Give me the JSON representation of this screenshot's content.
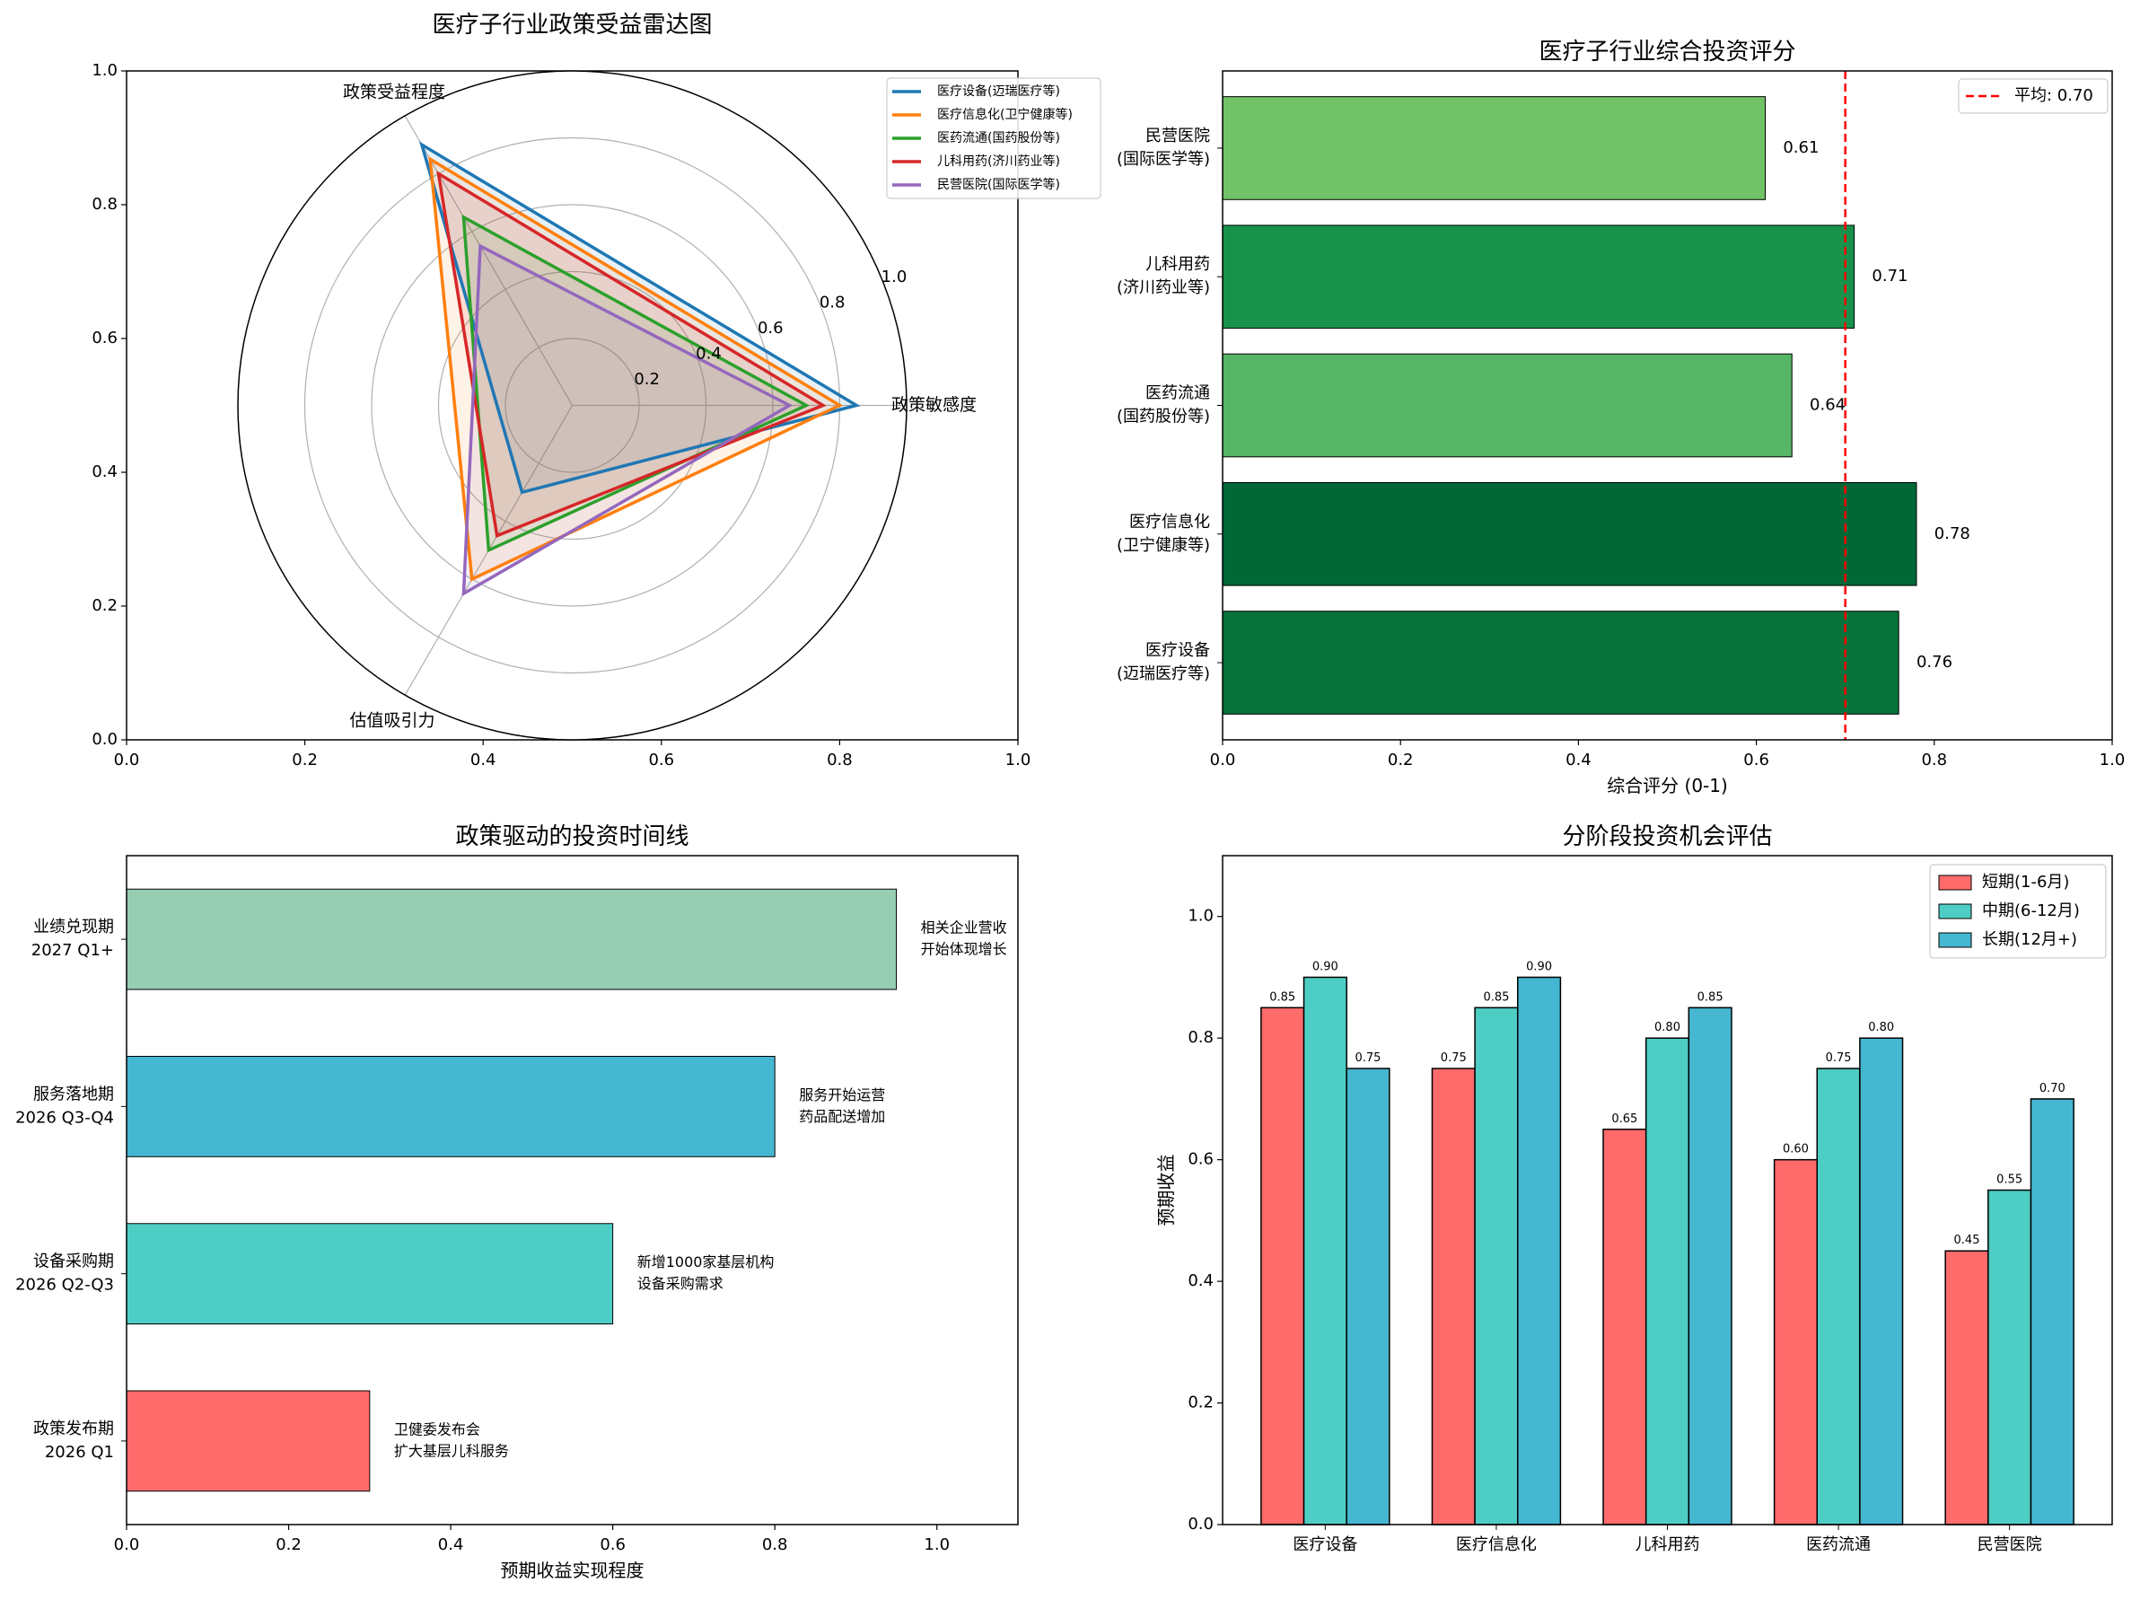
{
  "chart_data": [
    {
      "type": "radar",
      "title": "医疗子行业政策受益雷达图",
      "axes": [
        "政策敏感度",
        "政策受益程度",
        "估值吸引力"
      ],
      "rlim": [
        0,
        1.0
      ],
      "r_ticks": [
        "0.2",
        "0.4",
        "0.6",
        "0.8",
        "1.0"
      ],
      "background_axis_ticks": [
        "0.0",
        "0.2",
        "0.4",
        "0.6",
        "0.8",
        "1.0"
      ],
      "legend_position": "top-right",
      "series": [
        {
          "name": "医疗设备(迈瑞医疗等)",
          "color": "#1f77b4",
          "values": [
            0.85,
            0.9,
            0.3
          ]
        },
        {
          "name": "医疗信息化(卫宁健康等)",
          "color": "#ff7f0e",
          "values": [
            0.8,
            0.85,
            0.6
          ]
        },
        {
          "name": "医药流通(国药股份等)",
          "color": "#2ca02c",
          "values": [
            0.7,
            0.65,
            0.5
          ]
        },
        {
          "name": "儿科用药(济川药业等)",
          "color": "#d62728",
          "values": [
            0.75,
            0.8,
            0.45
          ]
        },
        {
          "name": "民营医院(国际医学等)",
          "color": "#9467bd",
          "values": [
            0.65,
            0.55,
            0.65
          ]
        }
      ]
    },
    {
      "type": "bar",
      "orientation": "horizontal",
      "title": "医疗子行业综合投资评分",
      "xlabel": "综合评分 (0-1)",
      "xlim": [
        0,
        1.0
      ],
      "x_ticks": [
        "0.0",
        "0.2",
        "0.4",
        "0.6",
        "0.8",
        "1.0"
      ],
      "categories": [
        [
          "医疗设备",
          "(迈瑞医疗等)"
        ],
        [
          "医疗信息化",
          "(卫宁健康等)"
        ],
        [
          "医药流通",
          "(国药股份等)"
        ],
        [
          "儿科用药",
          "(济川药业等)"
        ],
        [
          "民营医院",
          "(国际医学等)"
        ]
      ],
      "values": [
        0.76,
        0.78,
        0.64,
        0.71,
        0.61
      ],
      "value_labels": [
        "0.76",
        "0.78",
        "0.64",
        "0.71",
        "0.61"
      ],
      "colors": [
        "#08723b",
        "#006837",
        "#57b567",
        "#17924b",
        "#72c267"
      ],
      "reference_line": {
        "value": 0.7,
        "label": "平均: 0.70",
        "color": "#ff0000"
      },
      "legend_position": "top-right"
    },
    {
      "type": "bar",
      "orientation": "horizontal",
      "title": "政策驱动的投资时间线",
      "xlabel": "预期收益实现程度",
      "xlim": [
        0,
        1.1
      ],
      "x_ticks": [
        "0.0",
        "0.2",
        "0.4",
        "0.6",
        "0.8",
        "1.0"
      ],
      "categories": [
        [
          "政策发布期",
          "2026 Q1"
        ],
        [
          "设备采购期",
          "2026 Q2-Q3"
        ],
        [
          "服务落地期",
          "2026 Q3-Q4"
        ],
        [
          "业绩兑现期",
          "2027 Q1+"
        ]
      ],
      "values": [
        0.3,
        0.6,
        0.8,
        0.95
      ],
      "colors": [
        "#ff6b6b",
        "#4ecdc4",
        "#45b7d1",
        "#96ceb4"
      ],
      "annotations": [
        [
          "卫健委发布会",
          "扩大基层儿科服务"
        ],
        [
          "新增1000家基层机构",
          "设备采购需求"
        ],
        [
          "服务开始运营",
          "药品配送增加"
        ],
        [
          "相关企业营收",
          "开始体现增长"
        ]
      ]
    },
    {
      "type": "bar",
      "orientation": "vertical",
      "title": "分阶段投资机会评估",
      "ylabel": "预期收益",
      "ylim": [
        0,
        1.1
      ],
      "y_ticks": [
        "0.0",
        "0.2",
        "0.4",
        "0.6",
        "0.8",
        "1.0"
      ],
      "categories": [
        "医疗设备",
        "医疗信息化",
        "儿科用药",
        "医药流通",
        "民营医院"
      ],
      "legend_position": "top-right",
      "series": [
        {
          "name": "短期(1-6月)",
          "color": "#ff6b6b",
          "values": [
            0.85,
            0.75,
            0.65,
            0.6,
            0.45
          ],
          "labels": [
            "0.85",
            "0.75",
            "0.65",
            "0.60",
            "0.45"
          ]
        },
        {
          "name": "中期(6-12月)",
          "color": "#4ecdc4",
          "values": [
            0.9,
            0.85,
            0.8,
            0.75,
            0.55
          ],
          "labels": [
            "0.90",
            "0.85",
            "0.80",
            "0.75",
            "0.55"
          ]
        },
        {
          "name": "长期(12月+)",
          "color": "#45b7d1",
          "values": [
            0.75,
            0.9,
            0.85,
            0.8,
            0.7
          ],
          "labels": [
            "0.75",
            "0.90",
            "0.85",
            "0.80",
            "0.70"
          ]
        }
      ]
    }
  ]
}
